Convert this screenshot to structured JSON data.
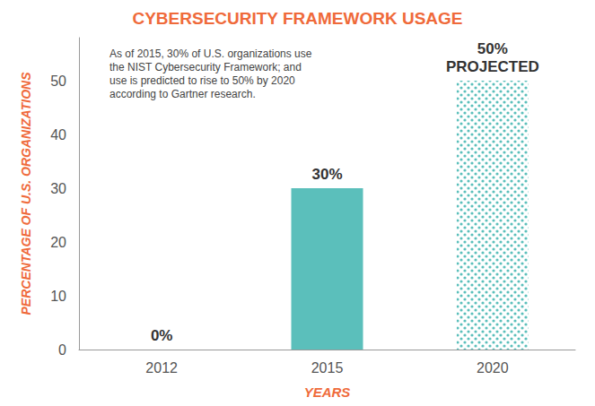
{
  "chart_data": {
    "type": "bar",
    "title": "CYBERSECURITY FRAMEWORK USAGE",
    "x_label": "YEARS",
    "y_label": "PERCENTAGE OF U.S. ORGANIZATIONS",
    "annotation": "As of 2015, 30% of U.S. organizations use the NIST Cybersecurity Framework; and use is predicted to rise to 50% by 2020 according to Gartner research.",
    "categories": [
      "2012",
      "2015",
      "2020"
    ],
    "values": [
      0,
      30,
      50
    ],
    "value_labels": [
      "0%",
      "30%",
      "50%\nPROJECTED"
    ],
    "data_labels": true,
    "color": "#5bbfbb",
    "ylim": [
      0,
      58
    ],
    "yticks": [
      0,
      10,
      20,
      30,
      40,
      50
    ],
    "grid": false
  }
}
